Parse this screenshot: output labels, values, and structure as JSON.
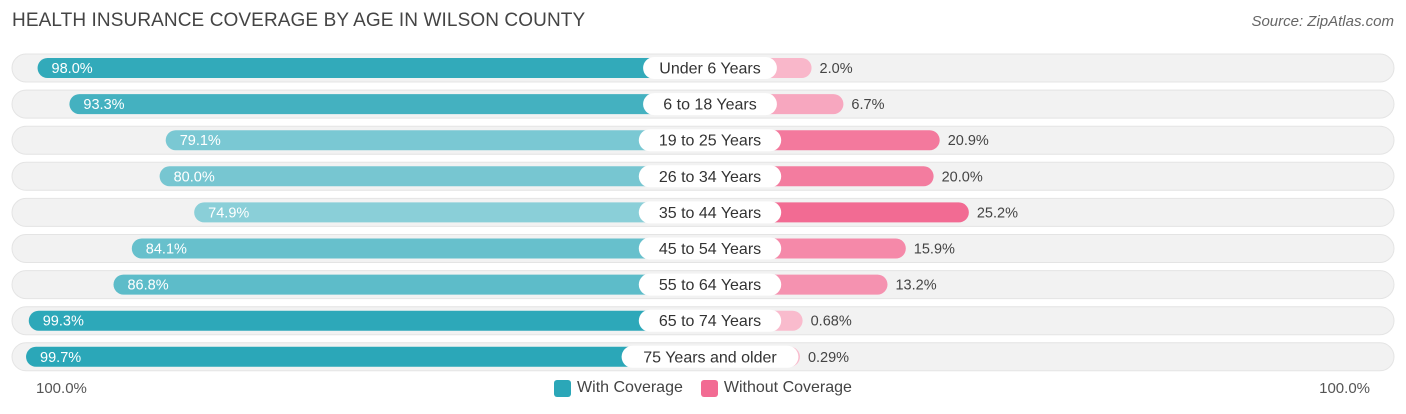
{
  "title": "HEALTH INSURANCE COVERAGE BY AGE IN WILSON COUNTY",
  "source": "Source: ZipAtlas.com",
  "colors": {
    "with_coverage": "#2ba7b8",
    "without_coverage": "#f26b93",
    "track": "#f1f1f1"
  },
  "chart_data": {
    "type": "bar",
    "orientation": "horizontal-diverging",
    "title": "HEALTH INSURANCE COVERAGE BY AGE IN WILSON COUNTY",
    "categories": [
      "Under 6 Years",
      "6 to 18 Years",
      "19 to 25 Years",
      "26 to 34 Years",
      "35 to 44 Years",
      "45 to 54 Years",
      "55 to 64 Years",
      "65 to 74 Years",
      "75 Years and older"
    ],
    "series": [
      {
        "name": "With Coverage",
        "values": [
          98.0,
          93.3,
          79.1,
          80.0,
          74.9,
          84.1,
          86.8,
          99.3,
          99.7
        ],
        "labels": [
          "98.0%",
          "93.3%",
          "79.1%",
          "80.0%",
          "74.9%",
          "84.1%",
          "86.8%",
          "99.3%",
          "99.7%"
        ]
      },
      {
        "name": "Without Coverage",
        "values": [
          2.0,
          6.7,
          20.9,
          20.0,
          25.2,
          15.9,
          13.2,
          0.68,
          0.29
        ],
        "labels": [
          "2.0%",
          "6.7%",
          "20.9%",
          "20.0%",
          "25.2%",
          "15.9%",
          "13.2%",
          "0.68%",
          "0.29%"
        ]
      }
    ],
    "axis": {
      "left_label": "100.0%",
      "right_label": "100.0%",
      "range": [
        0,
        100
      ]
    },
    "legend": [
      "With Coverage",
      "Without Coverage"
    ]
  }
}
